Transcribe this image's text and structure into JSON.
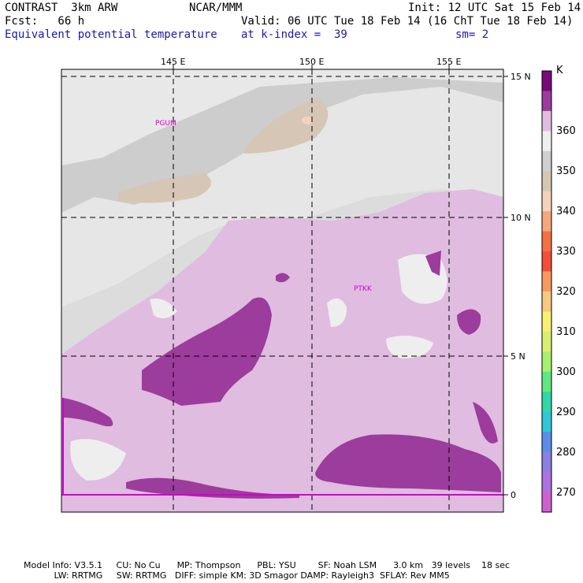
{
  "header": {
    "left1": "CONTRAST  3km ARW",
    "left2": "Fcst:   66 h",
    "center": "NCAR/MMM",
    "init": "Init: 12 UTC Sat 15 Feb 14",
    "valid": "Valid: 06 UTC Tue 18 Feb 14 (16 ChT Tue 18 Feb 14)",
    "field": "Equivalent potential temperature",
    "level": "at k-index =  39",
    "smooth": "sm= 2"
  },
  "map": {
    "lon_labels": [
      "145 E",
      "150 E",
      "155 E"
    ],
    "lat_labels": [
      "15 N",
      "10 N",
      "5 N",
      "0"
    ],
    "stations": [
      "PGUM",
      "PTKK"
    ]
  },
  "colorbar": {
    "unit": "K",
    "labels": [
      "360",
      "350",
      "340",
      "330",
      "320",
      "310",
      "300",
      "290",
      "280",
      "270"
    ],
    "colors": [
      "#7a0a7a",
      "#9c3c9c",
      "#e0bce0",
      "#eeeeee",
      "#cfcfcf",
      "#d6c6b6",
      "#f4d2bc",
      "#f4a880",
      "#f47044",
      "#f44e3a",
      "#f89a60",
      "#f8c880",
      "#f8f070",
      "#d8f070",
      "#a8f070",
      "#60e880",
      "#30d8a8",
      "#30c8d8",
      "#5c8ce8",
      "#8a80e0",
      "#b070e0",
      "#d060d0"
    ]
  },
  "footer": {
    "line1": "Model Info: V3.5.1     CU: No Cu      MP: Thompson      PBL: YSU        SF: Noah LSM      3.0 km   39 levels    18 sec",
    "line2": "           LW: RRTMG     SW: RRTMG   DIFF: simple KM: 3D Smagor DAMP: Rayleigh3  SFLAY: Rev MM5"
  }
}
